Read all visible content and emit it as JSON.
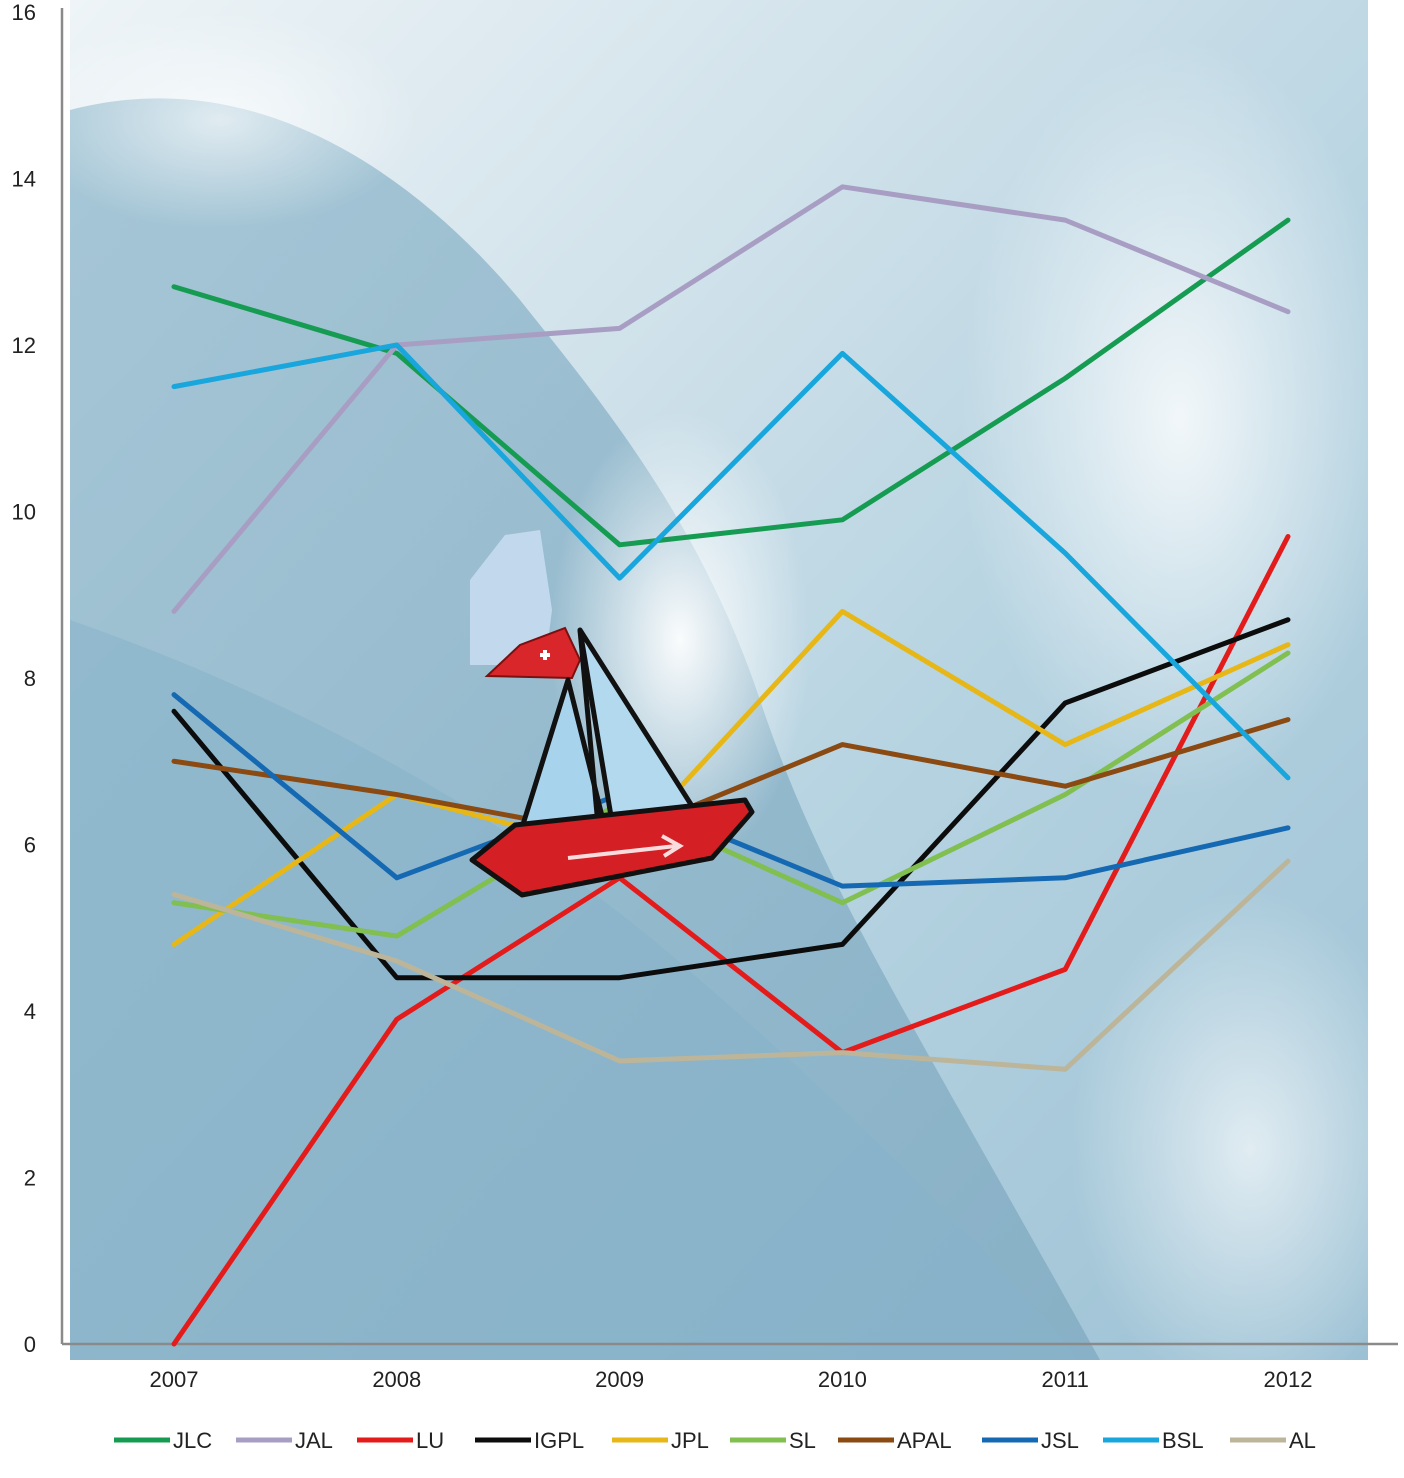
{
  "chart_data": {
    "type": "line",
    "title": "",
    "xlabel": "",
    "ylabel": "",
    "categories": [
      "2007",
      "2008",
      "2009",
      "2010",
      "2011",
      "2012"
    ],
    "ylim": [
      0,
      16
    ],
    "yticks": [
      0,
      2,
      4,
      6,
      8,
      10,
      12,
      14,
      16
    ],
    "grid": false,
    "legend_position": "bottom",
    "background": "photo of an ocean wave with a small sailboat flying a Swiss flag",
    "series": [
      {
        "name": "JLC",
        "color": "#169c52",
        "values": [
          12.7,
          11.9,
          9.6,
          9.9,
          11.6,
          13.5
        ]
      },
      {
        "name": "JAL",
        "color": "#a89ec4",
        "values": [
          8.8,
          12.0,
          12.2,
          13.9,
          13.5,
          12.4
        ]
      },
      {
        "name": "LU",
        "color": "#e31b1b",
        "values": [
          0.0,
          3.9,
          5.6,
          3.5,
          4.5,
          9.7
        ]
      },
      {
        "name": "IGPL",
        "color": "#0c0c0c",
        "values": [
          7.6,
          4.4,
          4.4,
          4.8,
          7.7,
          8.7
        ]
      },
      {
        "name": "JPL",
        "color": "#e6b716",
        "values": [
          4.8,
          6.6,
          5.9,
          8.8,
          7.2,
          8.4
        ]
      },
      {
        "name": "SL",
        "color": "#80bf50",
        "values": [
          5.3,
          4.9,
          6.5,
          5.3,
          6.6,
          8.3
        ]
      },
      {
        "name": "APAL",
        "color": "#8a4a12",
        "values": [
          7.0,
          6.6,
          6.1,
          7.2,
          6.7,
          7.5
        ]
      },
      {
        "name": "JSL",
        "color": "#1569b3",
        "values": [
          7.8,
          5.6,
          6.6,
          5.5,
          5.6,
          6.2
        ]
      },
      {
        "name": "BSL",
        "color": "#18a6dd",
        "values": [
          11.5,
          12.0,
          9.2,
          11.9,
          9.5,
          6.8
        ]
      },
      {
        "name": "AL",
        "color": "#bcb59a",
        "values": [
          5.4,
          4.6,
          3.4,
          3.5,
          3.3,
          5.8
        ]
      }
    ]
  }
}
